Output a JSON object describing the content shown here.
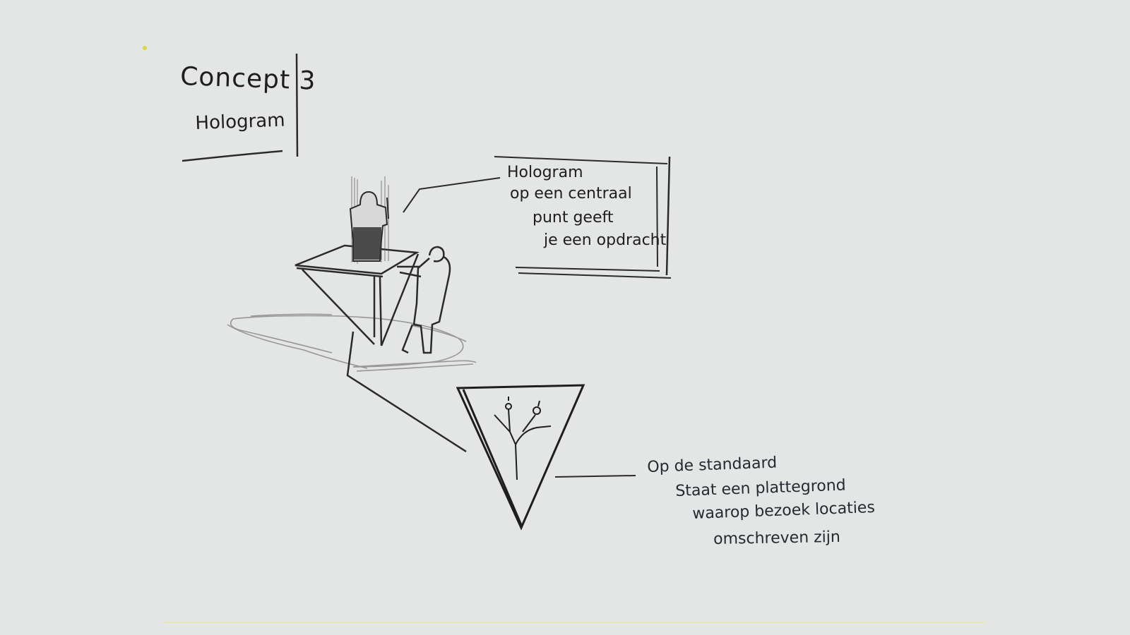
{
  "title_block": {
    "title": "Concept 3",
    "subtitle": "Hologram"
  },
  "hologram_note": {
    "lines": [
      "Hologram",
      "op een centraal",
      "punt geeft",
      "je een opdracht"
    ]
  },
  "stand_note": {
    "lines": [
      "Op de standaard",
      "Staat een plattegrond",
      "waarop bezoek locaties",
      "omschreven zijn"
    ]
  },
  "colors": {
    "paper": "#e4e5e5",
    "ink": "#1e1e1e",
    "pencil": "#8a8a8a"
  }
}
